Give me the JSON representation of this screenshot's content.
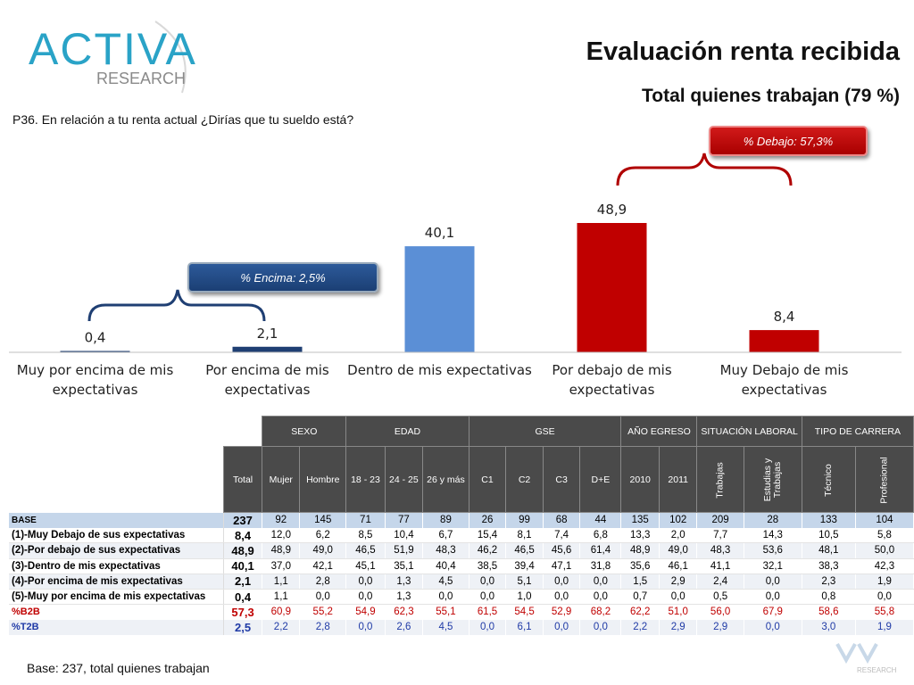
{
  "header": {
    "logo_text_main": "ACTIVA",
    "logo_text_sub": "RESEARCH",
    "title": "Evaluación renta recibida",
    "subtitle": "Total quienes trabajan (79 %)",
    "question": "P36. En relación a tu renta actual ¿Dirías que tu sueldo está?"
  },
  "callouts": {
    "top_label": "% Debajo:  57,3%",
    "low_label": "% Encima:  2,5%"
  },
  "colors": {
    "dark_blue": "#1f3f73",
    "light_blue": "#5b8fd6",
    "red": "#c00000"
  },
  "chart_data": {
    "type": "bar",
    "categories": [
      [
        "Muy por encima de mis",
        "expectativas"
      ],
      [
        "Por encima de mis",
        "expectativas"
      ],
      [
        "Dentro de mis expectativas"
      ],
      [
        "Por debajo de mis",
        "expectativas"
      ],
      [
        "Muy Debajo de mis",
        "expectativas"
      ]
    ],
    "values": [
      0.4,
      2.1,
      40.1,
      48.9,
      8.4
    ],
    "value_labels": [
      "0,4",
      "2,1",
      "40,1",
      "48,9",
      "8,4"
    ],
    "bar_colors": [
      "#1f3f73",
      "#1f3f73",
      "#5b8fd6",
      "#c00000",
      "#c00000"
    ],
    "ylim": [
      0,
      50
    ],
    "grid": false,
    "legend": "none"
  },
  "table": {
    "groups": [
      {
        "label": "SEXO",
        "span": 2
      },
      {
        "label": "EDAD",
        "span": 3
      },
      {
        "label": "GSE",
        "span": 4
      },
      {
        "label": "AÑO EGRESO",
        "span": 2
      },
      {
        "label": "SITUACIÓN LABORAL",
        "span": 2
      },
      {
        "label": "TIPO DE CARRERA",
        "span": 2
      }
    ],
    "columns": [
      "Total",
      "Mujer",
      "Hombre",
      "18 - 23",
      "24 - 25",
      "26 y más",
      "C1",
      "C2",
      "C3",
      "D+E",
      "2010",
      "2011",
      "Trabajas",
      "Estudias y Trabajas",
      "Técnico",
      "Profesional"
    ],
    "rows": [
      {
        "label": "BASE",
        "values": [
          "237",
          "92",
          "145",
          "71",
          "77",
          "89",
          "26",
          "99",
          "68",
          "44",
          "135",
          "102",
          "209",
          "28",
          "133",
          "104"
        ]
      },
      {
        "label": "(1)-Muy Debajo de sus expectativas",
        "values": [
          "8,4",
          "12,0",
          "6,2",
          "8,5",
          "10,4",
          "6,7",
          "15,4",
          "8,1",
          "7,4",
          "6,8",
          "13,3",
          "2,0",
          "7,7",
          "14,3",
          "10,5",
          "5,8"
        ]
      },
      {
        "label": "(2)-Por debajo de sus expectativas",
        "values": [
          "48,9",
          "48,9",
          "49,0",
          "46,5",
          "51,9",
          "48,3",
          "46,2",
          "46,5",
          "45,6",
          "61,4",
          "48,9",
          "49,0",
          "48,3",
          "53,6",
          "48,1",
          "50,0"
        ]
      },
      {
        "label": "(3)-Dentro de mis expectativas",
        "values": [
          "40,1",
          "37,0",
          "42,1",
          "45,1",
          "35,1",
          "40,4",
          "38,5",
          "39,4",
          "47,1",
          "31,8",
          "35,6",
          "46,1",
          "41,1",
          "32,1",
          "38,3",
          "42,3"
        ]
      },
      {
        "label": "(4)-Por encima de mis expectativas",
        "values": [
          "2,1",
          "1,1",
          "2,8",
          "0,0",
          "1,3",
          "4,5",
          "0,0",
          "5,1",
          "0,0",
          "0,0",
          "1,5",
          "2,9",
          "2,4",
          "0,0",
          "2,3",
          "1,9"
        ]
      },
      {
        "label": "(5)-Muy por encima de mis expectativas",
        "values": [
          "0,4",
          "1,1",
          "0,0",
          "0,0",
          "1,3",
          "0,0",
          "0,0",
          "1,0",
          "0,0",
          "0,0",
          "0,7",
          "0,0",
          "0,5",
          "0,0",
          "0,8",
          "0,0"
        ]
      },
      {
        "label": "%B2B",
        "values": [
          "57,3",
          "60,9",
          "55,2",
          "54,9",
          "62,3",
          "55,1",
          "61,5",
          "54,5",
          "52,9",
          "68,2",
          "62,2",
          "51,0",
          "56,0",
          "67,9",
          "58,6",
          "55,8"
        ]
      },
      {
        "label": "%T2B",
        "values": [
          "2,5",
          "2,2",
          "2,8",
          "0,0",
          "2,6",
          "4,5",
          "0,0",
          "6,1",
          "0,0",
          "0,0",
          "2,2",
          "2,9",
          "2,9",
          "0,0",
          "3,0",
          "1,9"
        ]
      }
    ]
  },
  "footer": {
    "base_note": "Base: 237, total quienes trabajan",
    "watermark": "RESEARCH"
  }
}
